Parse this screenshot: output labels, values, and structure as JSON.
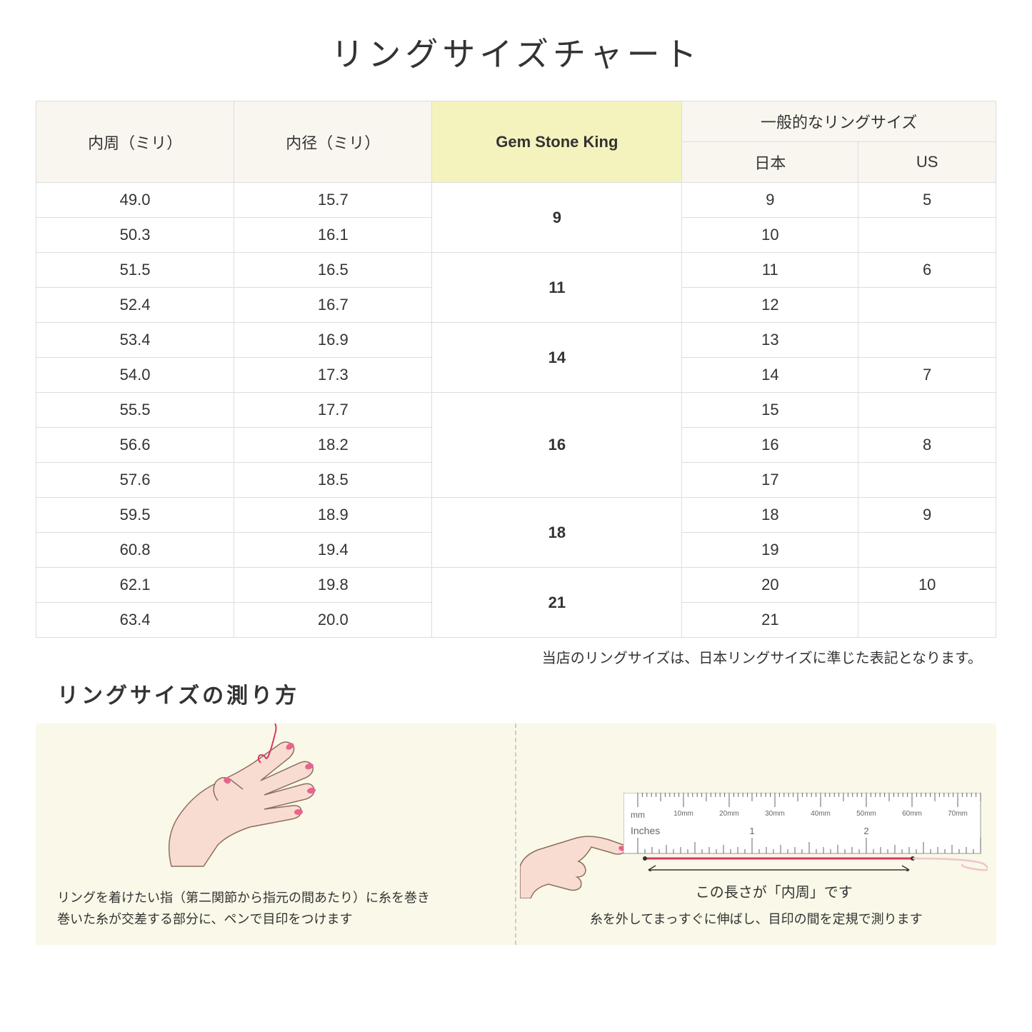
{
  "title": "リングサイズチャート",
  "headers": {
    "circumference": "内周（ミリ）",
    "diameter": "内径（ミリ）",
    "brand": "Gem Stone King",
    "general_top": "一般的なリングサイズ",
    "japan": "日本",
    "us": "US"
  },
  "groups": [
    {
      "brand_size": "9",
      "rows": [
        {
          "circ": "49.0",
          "dia": "15.7",
          "jp": "9",
          "us": "5"
        },
        {
          "circ": "50.3",
          "dia": "16.1",
          "jp": "10",
          "us": ""
        }
      ]
    },
    {
      "brand_size": "11",
      "rows": [
        {
          "circ": "51.5",
          "dia": "16.5",
          "jp": "11",
          "us": "6"
        },
        {
          "circ": "52.4",
          "dia": "16.7",
          "jp": "12",
          "us": ""
        }
      ]
    },
    {
      "brand_size": "14",
      "rows": [
        {
          "circ": "53.4",
          "dia": "16.9",
          "jp": "13",
          "us": ""
        },
        {
          "circ": "54.0",
          "dia": "17.3",
          "jp": "14",
          "us": "7"
        }
      ]
    },
    {
      "brand_size": "16",
      "rows": [
        {
          "circ": "55.5",
          "dia": "17.7",
          "jp": "15",
          "us": ""
        },
        {
          "circ": "56.6",
          "dia": "18.2",
          "jp": "16",
          "us": "8"
        },
        {
          "circ": "57.6",
          "dia": "18.5",
          "jp": "17",
          "us": ""
        }
      ]
    },
    {
      "brand_size": "18",
      "rows": [
        {
          "circ": "59.5",
          "dia": "18.9",
          "jp": "18",
          "us": "9"
        },
        {
          "circ": "60.8",
          "dia": "19.4",
          "jp": "19",
          "us": ""
        }
      ]
    },
    {
      "brand_size": "21",
      "rows": [
        {
          "circ": "62.1",
          "dia": "19.8",
          "jp": "20",
          "us": "10"
        },
        {
          "circ": "63.4",
          "dia": "20.0",
          "jp": "21",
          "us": ""
        }
      ]
    }
  ],
  "note": "当店のリングサイズは、日本リングサイズに準じた表記となります。",
  "subtitle": "リングサイズの測り方",
  "instruction_left_line1": "リングを着けたい指（第二関節から指元の間あたり）に糸を巻き",
  "instruction_left_line2": "巻いた糸が交差する部分に、ペンで目印をつけます",
  "ruler_caption": "この長さが「内周」です",
  "instruction_right": "糸を外してまっすぐに伸ばし、目印の間を定規で測ります",
  "ruler_marks": [
    "10mm",
    "20mm",
    "30mm",
    "40mm",
    "50mm",
    "60mm",
    "70mm"
  ],
  "ruler_mm_label": "mm",
  "ruler_inches_label": "Inches",
  "ruler_inch_marks": [
    "1",
    "2"
  ],
  "colors": {
    "header_bg": "#f8f6ef",
    "highlight_bg": "#f4f3be",
    "border": "#dddddd",
    "instruction_bg": "#faf8e8",
    "hand_fill": "#f9dcd1",
    "hand_stroke": "#8b6f5c",
    "nail": "#e8648f",
    "thread": "#d63865"
  }
}
